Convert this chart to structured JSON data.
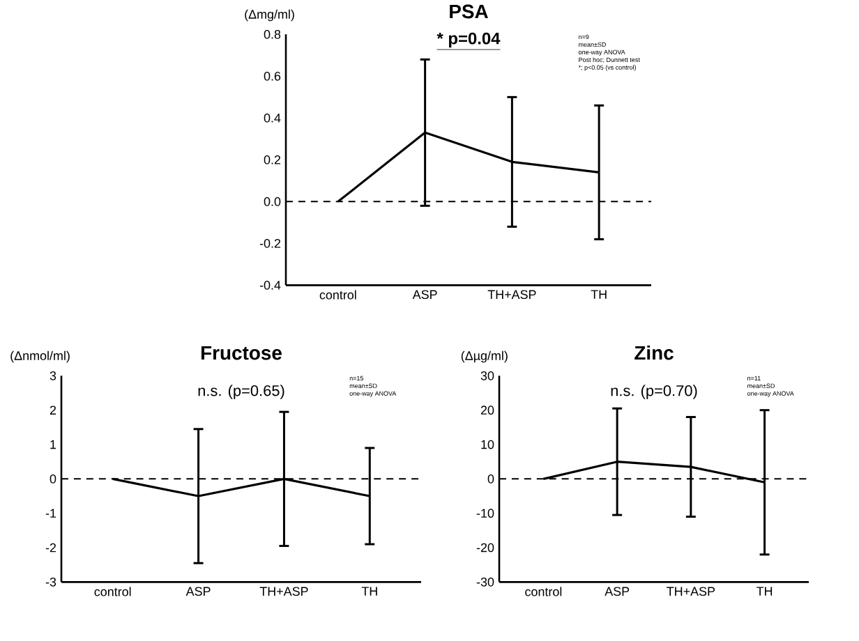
{
  "chart_data": [
    {
      "type": "line",
      "title": "PSA",
      "ylabel": "(Δmg/ml)",
      "categories": [
        "control",
        "ASP",
        "TH+ASP",
        "TH"
      ],
      "series": [
        {
          "color": "#000000",
          "values": [
            0,
            0.33,
            0.19,
            0.14
          ],
          "errors": [
            null,
            0.35,
            0.31,
            0.32
          ]
        }
      ],
      "ylim": [
        -0.4,
        0.8
      ],
      "yticks": [
        {
          "value": -0.4,
          "label": "-0.4"
        },
        {
          "value": -0.2,
          "label": "-0.2"
        },
        {
          "value": 0,
          "label": "0.0"
        },
        {
          "value": 0.2,
          "label": "0.2"
        },
        {
          "value": 0.4,
          "label": "0.4"
        },
        {
          "value": 0.6,
          "label": "0.6"
        },
        {
          "value": 0.8,
          "label": "0.8"
        }
      ],
      "ref_lines": [
        {
          "axis": "y",
          "value": 0,
          "line_style": "dashed",
          "color": "#000000"
        }
      ],
      "annotations": [
        "* p=0.04",
        "n=9",
        "mean±SD",
        "one-way ANOVA",
        "Post hoc; Dunnett test",
        "*; p<0.05 (vs control)"
      ],
      "marker": "none",
      "line_style": "solid",
      "grid": false
    },
    {
      "type": "line",
      "title": "Fructose",
      "ylabel": "(Δnmol/ml)",
      "categories": [
        "control",
        "ASP",
        "TH+ASP",
        "TH"
      ],
      "series": [
        {
          "color": "#000000",
          "values": [
            0,
            -0.5,
            0,
            -0.5
          ],
          "errors": [
            null,
            1.95,
            1.95,
            1.4
          ]
        }
      ],
      "ylim": [
        -3,
        3
      ],
      "yticks": [
        -3,
        -2,
        -1,
        0,
        1,
        2,
        3
      ],
      "ref_lines": [
        {
          "axis": "y",
          "value": 0,
          "line_style": "dashed",
          "color": "#000000"
        }
      ],
      "annotations": [
        "n.s. (p=0.65)",
        "n=15",
        "mean±SD",
        "one-way ANOVA"
      ],
      "marker": "none",
      "line_style": "solid",
      "grid": false
    },
    {
      "type": "line",
      "title": "Zinc",
      "ylabel": "(Δµg/ml)",
      "categories": [
        "control",
        "ASP",
        "TH+ASP",
        "TH"
      ],
      "series": [
        {
          "color": "#000000",
          "values": [
            0,
            5,
            3.5,
            -1
          ],
          "errors": [
            null,
            15.5,
            14.5,
            21
          ]
        }
      ],
      "ylim": [
        -30,
        30
      ],
      "yticks": [
        -30,
        -20,
        -10,
        0,
        10,
        20,
        30
      ],
      "ref_lines": [
        {
          "axis": "y",
          "value": 0,
          "line_style": "dashed",
          "color": "#000000"
        }
      ],
      "annotations": [
        "n.s. (p=0.70)",
        "n=11",
        "mean±SD",
        "one-way ANOVA"
      ],
      "marker": "none",
      "line_style": "solid",
      "grid": false
    }
  ]
}
